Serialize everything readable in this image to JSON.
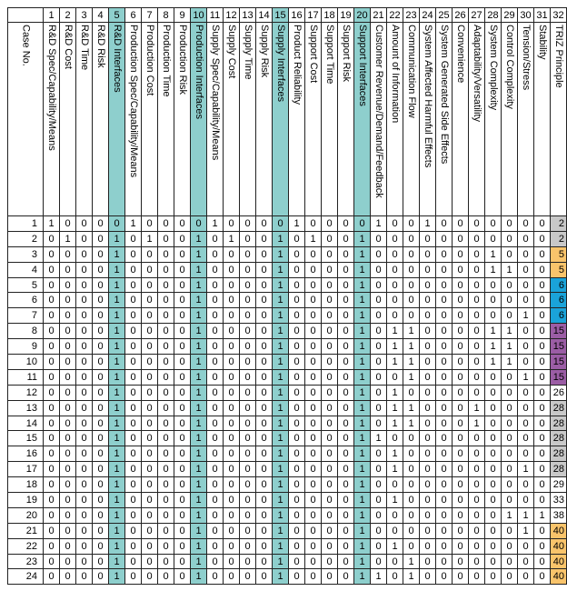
{
  "columns": [
    "R&D Spec/Capability/Means",
    "R&D Cost",
    "R&D Time",
    "R&D Risk",
    "R&D Interfaces",
    "Production Spec/Capability/Means",
    "Production Cost",
    "Production Time",
    "Production Risk",
    "Production Interfaces",
    "Supply Spec/Capability/Means",
    "Supply Cost",
    "Supply Time",
    "Supply Risk",
    "Supply Interfaces",
    "Product Reliability",
    "Support Cost",
    "Support Time",
    "Support Risk",
    "Support Interfaces",
    "Customer Revenue/Demand/Feedback",
    "Amount of Information",
    "Communication Flow",
    "System Affected Harmful Effects",
    "System Generated Side Effects",
    "Convenience",
    "Adaptability/Versatility",
    "System Complexity",
    "Control Complexity",
    "Tension/Stress",
    "Stability",
    "TRIZ Principle"
  ],
  "column_numbers": [
    "1",
    "2",
    "3",
    "4",
    "5",
    "6",
    "7",
    "8",
    "9",
    "10",
    "11",
    "12",
    "13",
    "14",
    "15",
    "16",
    "17",
    "18",
    "19",
    "20",
    "21",
    "22",
    "23",
    "24",
    "25",
    "26",
    "27",
    "28",
    "29",
    "30",
    "31",
    "32"
  ],
  "case_header": "Case No.",
  "highlight_columns": [
    5,
    10,
    15,
    20
  ],
  "colors": {
    "highlight": "#8ecfcd",
    "gray": "#c8c8c8",
    "yellow": "#f9c46b",
    "blue": "#1aa3d9",
    "purple": "#9b5da5"
  },
  "rows": [
    {
      "case": "1",
      "values": [
        "1",
        "0",
        "0",
        "0",
        "0",
        "1",
        "0",
        "0",
        "0",
        "0",
        "1",
        "0",
        "0",
        "0",
        "0",
        "1",
        "0",
        "0",
        "0",
        "0",
        "1",
        "0",
        "0",
        "1",
        "0",
        "0",
        "0",
        "0",
        "0",
        "0",
        "0",
        "2"
      ],
      "triz_color": "gray"
    },
    {
      "case": "2",
      "values": [
        "0",
        "1",
        "0",
        "0",
        "1",
        "0",
        "1",
        "0",
        "0",
        "1",
        "0",
        "1",
        "0",
        "0",
        "1",
        "0",
        "1",
        "0",
        "0",
        "1",
        "0",
        "0",
        "0",
        "0",
        "0",
        "0",
        "0",
        "0",
        "0",
        "0",
        "0",
        "2"
      ],
      "triz_color": "gray"
    },
    {
      "case": "3",
      "values": [
        "0",
        "0",
        "0",
        "0",
        "1",
        "0",
        "0",
        "0",
        "0",
        "1",
        "0",
        "0",
        "0",
        "0",
        "1",
        "0",
        "0",
        "0",
        "0",
        "1",
        "0",
        "0",
        "0",
        "0",
        "0",
        "0",
        "0",
        "1",
        "0",
        "0",
        "0",
        "5"
      ],
      "triz_color": "yellow"
    },
    {
      "case": "4",
      "values": [
        "0",
        "0",
        "0",
        "0",
        "1",
        "0",
        "0",
        "0",
        "0",
        "1",
        "0",
        "0",
        "0",
        "0",
        "1",
        "0",
        "0",
        "0",
        "0",
        "1",
        "0",
        "0",
        "0",
        "0",
        "0",
        "0",
        "0",
        "1",
        "1",
        "0",
        "0",
        "5"
      ],
      "triz_color": "yellow"
    },
    {
      "case": "5",
      "values": [
        "0",
        "0",
        "0",
        "0",
        "1",
        "0",
        "0",
        "0",
        "0",
        "1",
        "0",
        "0",
        "0",
        "0",
        "1",
        "0",
        "0",
        "0",
        "0",
        "1",
        "0",
        "0",
        "0",
        "0",
        "0",
        "0",
        "0",
        "0",
        "0",
        "0",
        "0",
        "6"
      ],
      "triz_color": "blue"
    },
    {
      "case": "6",
      "values": [
        "0",
        "0",
        "0",
        "0",
        "1",
        "0",
        "0",
        "0",
        "0",
        "1",
        "0",
        "0",
        "0",
        "0",
        "1",
        "0",
        "0",
        "0",
        "0",
        "1",
        "0",
        "0",
        "0",
        "0",
        "0",
        "0",
        "0",
        "0",
        "0",
        "0",
        "0",
        "6"
      ],
      "triz_color": "blue"
    },
    {
      "case": "7",
      "values": [
        "0",
        "0",
        "0",
        "0",
        "1",
        "0",
        "0",
        "0",
        "0",
        "1",
        "0",
        "0",
        "0",
        "0",
        "1",
        "0",
        "0",
        "0",
        "0",
        "1",
        "0",
        "0",
        "0",
        "0",
        "0",
        "0",
        "0",
        "0",
        "0",
        "1",
        "0",
        "6"
      ],
      "triz_color": "blue"
    },
    {
      "case": "8",
      "values": [
        "0",
        "0",
        "0",
        "0",
        "1",
        "0",
        "0",
        "0",
        "0",
        "1",
        "0",
        "0",
        "0",
        "0",
        "1",
        "0",
        "0",
        "0",
        "0",
        "1",
        "0",
        "1",
        "1",
        "0",
        "0",
        "0",
        "0",
        "1",
        "1",
        "0",
        "0",
        "15"
      ],
      "triz_color": "purple"
    },
    {
      "case": "9",
      "values": [
        "0",
        "0",
        "0",
        "0",
        "1",
        "0",
        "0",
        "0",
        "0",
        "1",
        "0",
        "0",
        "0",
        "0",
        "1",
        "0",
        "0",
        "0",
        "0",
        "1",
        "0",
        "1",
        "1",
        "0",
        "0",
        "0",
        "0",
        "1",
        "1",
        "0",
        "0",
        "15"
      ],
      "triz_color": "purple"
    },
    {
      "case": "10",
      "values": [
        "0",
        "0",
        "0",
        "0",
        "1",
        "0",
        "0",
        "0",
        "0",
        "1",
        "0",
        "0",
        "0",
        "0",
        "1",
        "0",
        "0",
        "0",
        "0",
        "1",
        "0",
        "1",
        "1",
        "0",
        "0",
        "0",
        "0",
        "1",
        "1",
        "0",
        "0",
        "15"
      ],
      "triz_color": "purple"
    },
    {
      "case": "11",
      "values": [
        "0",
        "0",
        "0",
        "0",
        "1",
        "0",
        "0",
        "0",
        "0",
        "1",
        "0",
        "0",
        "0",
        "0",
        "1",
        "0",
        "0",
        "0",
        "0",
        "1",
        "0",
        "0",
        "1",
        "0",
        "0",
        "0",
        "0",
        "0",
        "0",
        "1",
        "0",
        "15"
      ],
      "triz_color": "purple"
    },
    {
      "case": "12",
      "values": [
        "0",
        "0",
        "0",
        "0",
        "1",
        "0",
        "0",
        "0",
        "0",
        "1",
        "0",
        "0",
        "0",
        "0",
        "1",
        "0",
        "0",
        "0",
        "0",
        "1",
        "0",
        "1",
        "0",
        "0",
        "0",
        "0",
        "0",
        "0",
        "0",
        "0",
        "0",
        "26"
      ],
      "triz_color": ""
    },
    {
      "case": "13",
      "values": [
        "0",
        "0",
        "0",
        "0",
        "1",
        "0",
        "0",
        "0",
        "0",
        "1",
        "0",
        "0",
        "0",
        "0",
        "1",
        "0",
        "0",
        "0",
        "0",
        "1",
        "0",
        "1",
        "1",
        "0",
        "0",
        "0",
        "1",
        "0",
        "0",
        "0",
        "0",
        "28"
      ],
      "triz_color": "gray"
    },
    {
      "case": "14",
      "values": [
        "0",
        "0",
        "0",
        "0",
        "1",
        "0",
        "0",
        "0",
        "0",
        "1",
        "0",
        "0",
        "0",
        "0",
        "1",
        "0",
        "0",
        "0",
        "0",
        "1",
        "0",
        "1",
        "1",
        "0",
        "0",
        "0",
        "1",
        "0",
        "0",
        "0",
        "0",
        "28"
      ],
      "triz_color": "gray"
    },
    {
      "case": "15",
      "values": [
        "0",
        "0",
        "0",
        "0",
        "1",
        "0",
        "0",
        "0",
        "0",
        "1",
        "0",
        "0",
        "0",
        "0",
        "1",
        "0",
        "0",
        "0",
        "0",
        "1",
        "1",
        "0",
        "0",
        "0",
        "0",
        "0",
        "0",
        "0",
        "0",
        "0",
        "0",
        "28"
      ],
      "triz_color": "gray"
    },
    {
      "case": "16",
      "values": [
        "0",
        "0",
        "0",
        "0",
        "1",
        "0",
        "0",
        "0",
        "0",
        "1",
        "0",
        "0",
        "0",
        "0",
        "1",
        "0",
        "0",
        "0",
        "0",
        "1",
        "0",
        "1",
        "0",
        "0",
        "0",
        "0",
        "0",
        "0",
        "0",
        "0",
        "0",
        "28"
      ],
      "triz_color": "gray"
    },
    {
      "case": "17",
      "values": [
        "0",
        "0",
        "0",
        "0",
        "1",
        "0",
        "0",
        "0",
        "0",
        "1",
        "0",
        "0",
        "0",
        "0",
        "1",
        "0",
        "0",
        "0",
        "0",
        "1",
        "0",
        "1",
        "0",
        "0",
        "0",
        "0",
        "0",
        "0",
        "0",
        "1",
        "0",
        "28"
      ],
      "triz_color": "gray"
    },
    {
      "case": "18",
      "values": [
        "0",
        "0",
        "0",
        "0",
        "1",
        "0",
        "0",
        "0",
        "0",
        "1",
        "0",
        "0",
        "0",
        "0",
        "1",
        "0",
        "0",
        "0",
        "0",
        "1",
        "0",
        "0",
        "0",
        "0",
        "0",
        "0",
        "0",
        "0",
        "0",
        "0",
        "0",
        "29"
      ],
      "triz_color": ""
    },
    {
      "case": "19",
      "values": [
        "0",
        "0",
        "0",
        "0",
        "1",
        "0",
        "0",
        "0",
        "0",
        "1",
        "0",
        "0",
        "0",
        "0",
        "1",
        "0",
        "0",
        "0",
        "0",
        "1",
        "0",
        "1",
        "0",
        "0",
        "0",
        "0",
        "0",
        "0",
        "0",
        "0",
        "0",
        "33"
      ],
      "triz_color": ""
    },
    {
      "case": "20",
      "values": [
        "0",
        "0",
        "0",
        "0",
        "1",
        "0",
        "0",
        "0",
        "0",
        "1",
        "0",
        "0",
        "0",
        "0",
        "1",
        "0",
        "0",
        "0",
        "0",
        "1",
        "0",
        "0",
        "0",
        "0",
        "0",
        "0",
        "0",
        "0",
        "1",
        "1",
        "1",
        "38"
      ],
      "triz_color": ""
    },
    {
      "case": "21",
      "values": [
        "0",
        "0",
        "0",
        "0",
        "1",
        "0",
        "0",
        "0",
        "0",
        "1",
        "0",
        "0",
        "0",
        "0",
        "1",
        "0",
        "0",
        "0",
        "0",
        "1",
        "0",
        "0",
        "0",
        "0",
        "0",
        "0",
        "0",
        "0",
        "0",
        "1",
        "0",
        "40"
      ],
      "triz_color": "yellow"
    },
    {
      "case": "22",
      "values": [
        "0",
        "0",
        "0",
        "0",
        "1",
        "0",
        "0",
        "0",
        "0",
        "1",
        "0",
        "0",
        "0",
        "0",
        "1",
        "0",
        "0",
        "0",
        "0",
        "1",
        "0",
        "1",
        "0",
        "0",
        "0",
        "0",
        "0",
        "0",
        "0",
        "0",
        "0",
        "40"
      ],
      "triz_color": "yellow"
    },
    {
      "case": "23",
      "values": [
        "0",
        "0",
        "0",
        "0",
        "1",
        "0",
        "0",
        "0",
        "0",
        "1",
        "0",
        "0",
        "0",
        "0",
        "1",
        "0",
        "0",
        "0",
        "0",
        "1",
        "0",
        "0",
        "1",
        "0",
        "0",
        "0",
        "0",
        "0",
        "0",
        "0",
        "0",
        "40"
      ],
      "triz_color": "yellow"
    },
    {
      "case": "24",
      "values": [
        "0",
        "0",
        "0",
        "0",
        "1",
        "0",
        "0",
        "0",
        "0",
        "1",
        "0",
        "0",
        "0",
        "0",
        "1",
        "0",
        "0",
        "0",
        "0",
        "1",
        "1",
        "0",
        "1",
        "0",
        "0",
        "0",
        "0",
        "0",
        "0",
        "0",
        "0",
        "40"
      ],
      "triz_color": "yellow"
    }
  ]
}
